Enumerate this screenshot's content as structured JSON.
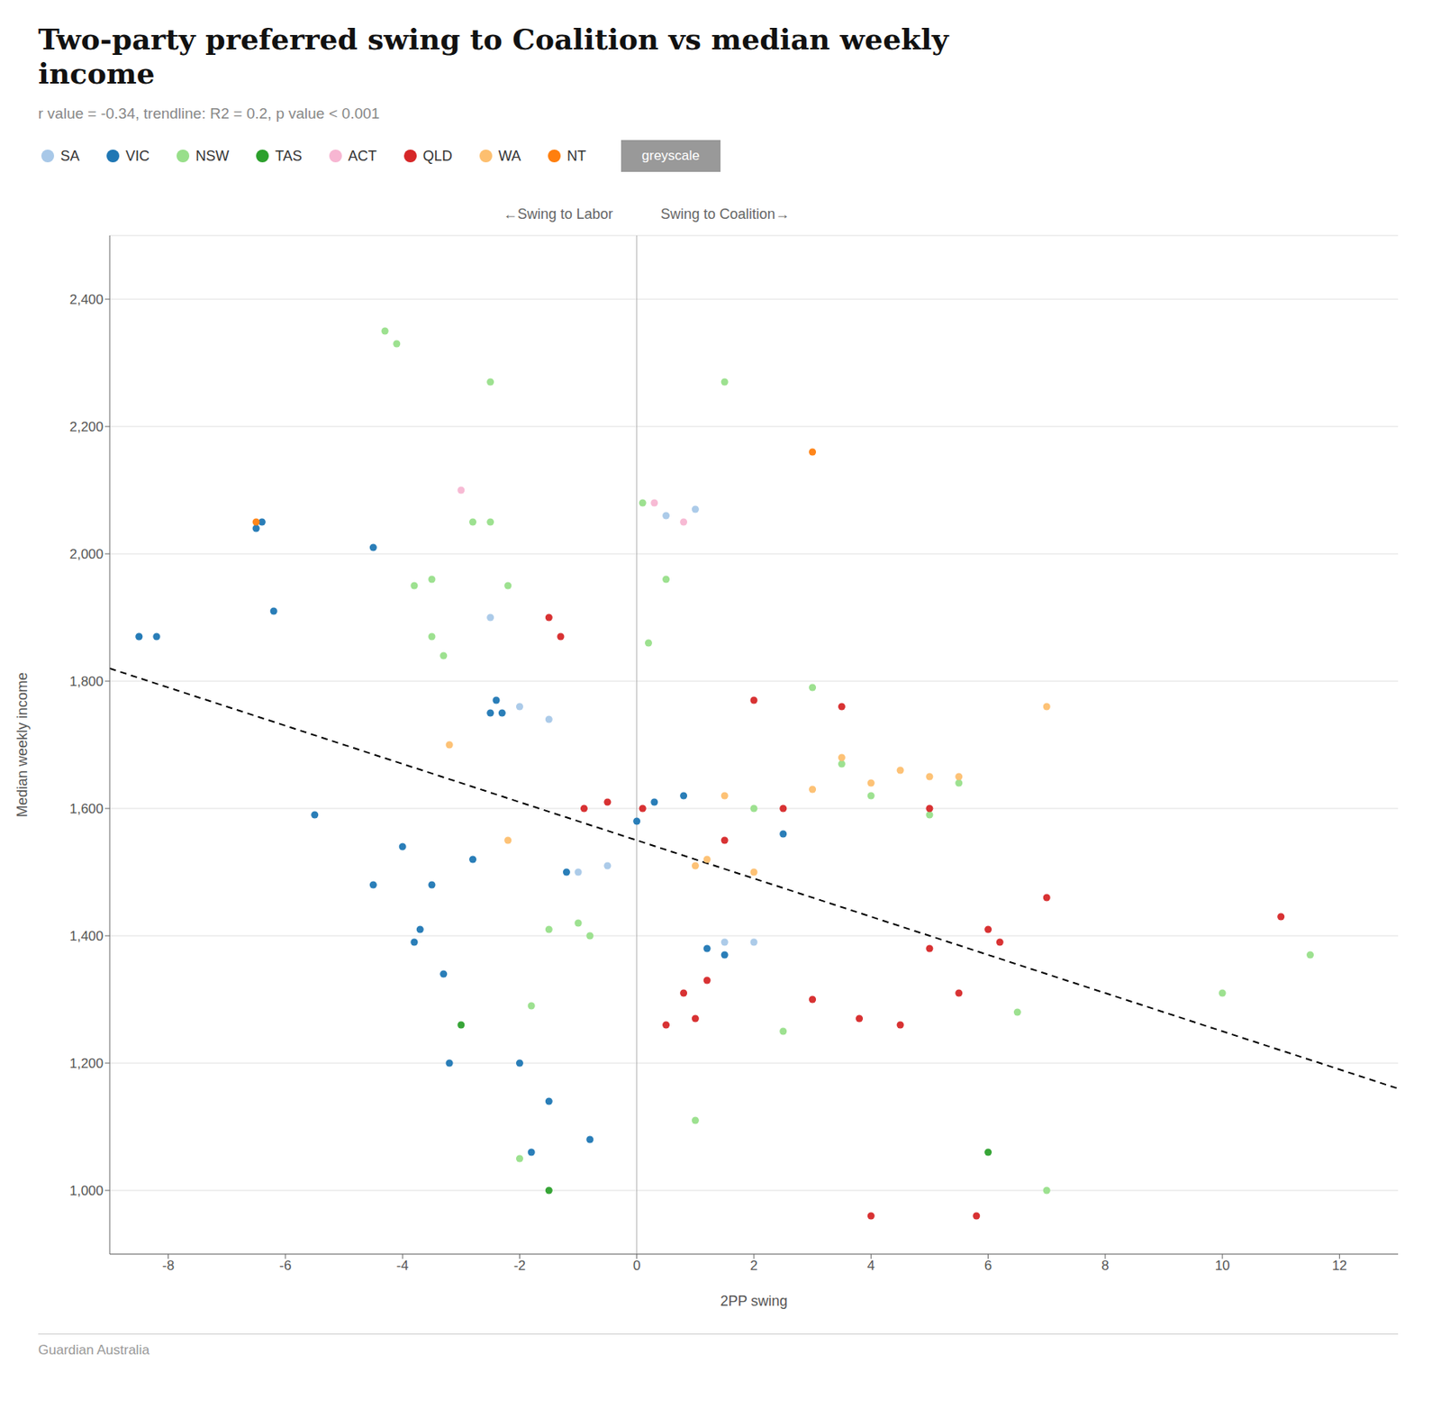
{
  "chart_data": {
    "type": "scatter",
    "title": "Two-party preferred swing to Coalition vs median weekly\nincome",
    "subtitle": "r value = -0.34, trendline: R2 = 0.2, p value < 0.001",
    "xlabel": "2PP swing",
    "ylabel": "Median weekly income",
    "footer": "Guardian Australia",
    "annotations": [
      "←Swing to Labor",
      "Swing to Coalition→"
    ],
    "button_label": "greyscale",
    "xlim": [
      -9,
      13
    ],
    "ylim": [
      900,
      2500
    ],
    "xticks": [
      -8,
      -6,
      -4,
      -2,
      0,
      2,
      4,
      6,
      8,
      10,
      12
    ],
    "yticks": [
      {
        "value": 1000,
        "label": "1,000"
      },
      {
        "value": 1200,
        "label": "1,200"
      },
      {
        "value": 1400,
        "label": "1,400"
      },
      {
        "value": 1600,
        "label": "1,600"
      },
      {
        "value": 1800,
        "label": "1,800"
      },
      {
        "value": 2000,
        "label": "2,000"
      },
      {
        "value": 2200,
        "label": "2,200"
      },
      {
        "value": 2400,
        "label": "2,400"
      }
    ],
    "grid": "y",
    "legend": "top",
    "x_reference": 0,
    "trendline": {
      "x": [
        -9,
        13
      ],
      "values": [
        1820,
        1160
      ],
      "color": "#000000",
      "line_style": "dashed"
    },
    "series": [
      {
        "name": "SA",
        "color": "#a8c8e8",
        "x": [
          -8.5,
          -2.5,
          -2.0,
          -1.5,
          -1.0,
          -0.5,
          0.5,
          1.0,
          1.5,
          2.0
        ],
        "values": [
          1870,
          1900,
          1760,
          1740,
          1500,
          1510,
          2060,
          2070,
          1390,
          1390
        ]
      },
      {
        "name": "VIC",
        "color": "#1f77b4",
        "x": [
          -8.5,
          -8.2,
          -6.5,
          -6.4,
          -6.2,
          -5.5,
          -4.5,
          -4.5,
          -4.0,
          -3.8,
          -3.7,
          -3.5,
          -3.3,
          -3.2,
          -2.8,
          -2.5,
          -2.4,
          -2.3,
          -2.0,
          -1.8,
          -1.5,
          -1.2,
          -0.8,
          0.0,
          0.3,
          0.8,
          1.2,
          1.5,
          2.5
        ],
        "values": [
          1870,
          1870,
          2040,
          2050,
          1910,
          1590,
          2010,
          1480,
          1540,
          1390,
          1410,
          1480,
          1340,
          1200,
          1520,
          1750,
          1770,
          1750,
          1200,
          1060,
          1140,
          1500,
          1080,
          1580,
          1610,
          1620,
          1380,
          1370,
          1560
        ]
      },
      {
        "name": "NSW",
        "color": "#98df8a",
        "x": [
          -4.3,
          -4.1,
          -3.8,
          -3.5,
          -3.5,
          -3.3,
          -2.8,
          -2.5,
          -2.5,
          -2.2,
          -2.0,
          -1.8,
          -1.5,
          -1.0,
          -0.8,
          0.1,
          0.2,
          0.5,
          1.0,
          1.5,
          2.0,
          2.5,
          3.0,
          3.5,
          4.0,
          5.0,
          5.5,
          6.5,
          7.0,
          10.0,
          11.5
        ],
        "values": [
          2350,
          2330,
          1950,
          1960,
          1870,
          1840,
          2050,
          2270,
          2050,
          1950,
          1050,
          1290,
          1410,
          1420,
          1400,
          2080,
          1860,
          1960,
          1110,
          2270,
          1600,
          1250,
          1790,
          1670,
          1620,
          1590,
          1640,
          1280,
          1000,
          1310,
          1370
        ]
      },
      {
        "name": "TAS",
        "color": "#2ca02c",
        "x": [
          -3.0,
          -1.5,
          6.0
        ],
        "values": [
          1260,
          1000,
          1060
        ]
      },
      {
        "name": "ACT",
        "color": "#f7b6d2",
        "x": [
          -3.0,
          0.3,
          0.8
        ],
        "values": [
          2100,
          2080,
          2050
        ]
      },
      {
        "name": "QLD",
        "color": "#d62728",
        "x": [
          -1.5,
          -1.3,
          -0.9,
          -0.5,
          0.1,
          0.5,
          0.8,
          1.0,
          1.2,
          1.5,
          2.0,
          2.5,
          3.0,
          3.5,
          3.8,
          4.0,
          4.5,
          5.0,
          5.0,
          5.5,
          5.8,
          6.0,
          6.2,
          7.0,
          11.0
        ],
        "values": [
          1900,
          1870,
          1600,
          1610,
          1600,
          1260,
          1310,
          1270,
          1330,
          1550,
          1770,
          1600,
          1300,
          1760,
          1270,
          960,
          1260,
          1600,
          1380,
          1310,
          960,
          1410,
          1390,
          1460,
          1430
        ]
      },
      {
        "name": "WA",
        "color": "#fdbf6f",
        "x": [
          -3.2,
          -2.2,
          1.0,
          1.2,
          1.5,
          2.0,
          3.0,
          3.5,
          4.0,
          4.5,
          5.0,
          5.5,
          7.0
        ],
        "values": [
          1700,
          1550,
          1510,
          1520,
          1620,
          1500,
          1630,
          1680,
          1640,
          1660,
          1650,
          1650,
          1760
        ]
      },
      {
        "name": "NT",
        "color": "#ff7f0e",
        "x": [
          -6.5,
          3.0
        ],
        "values": [
          2050,
          2160
        ]
      }
    ]
  }
}
